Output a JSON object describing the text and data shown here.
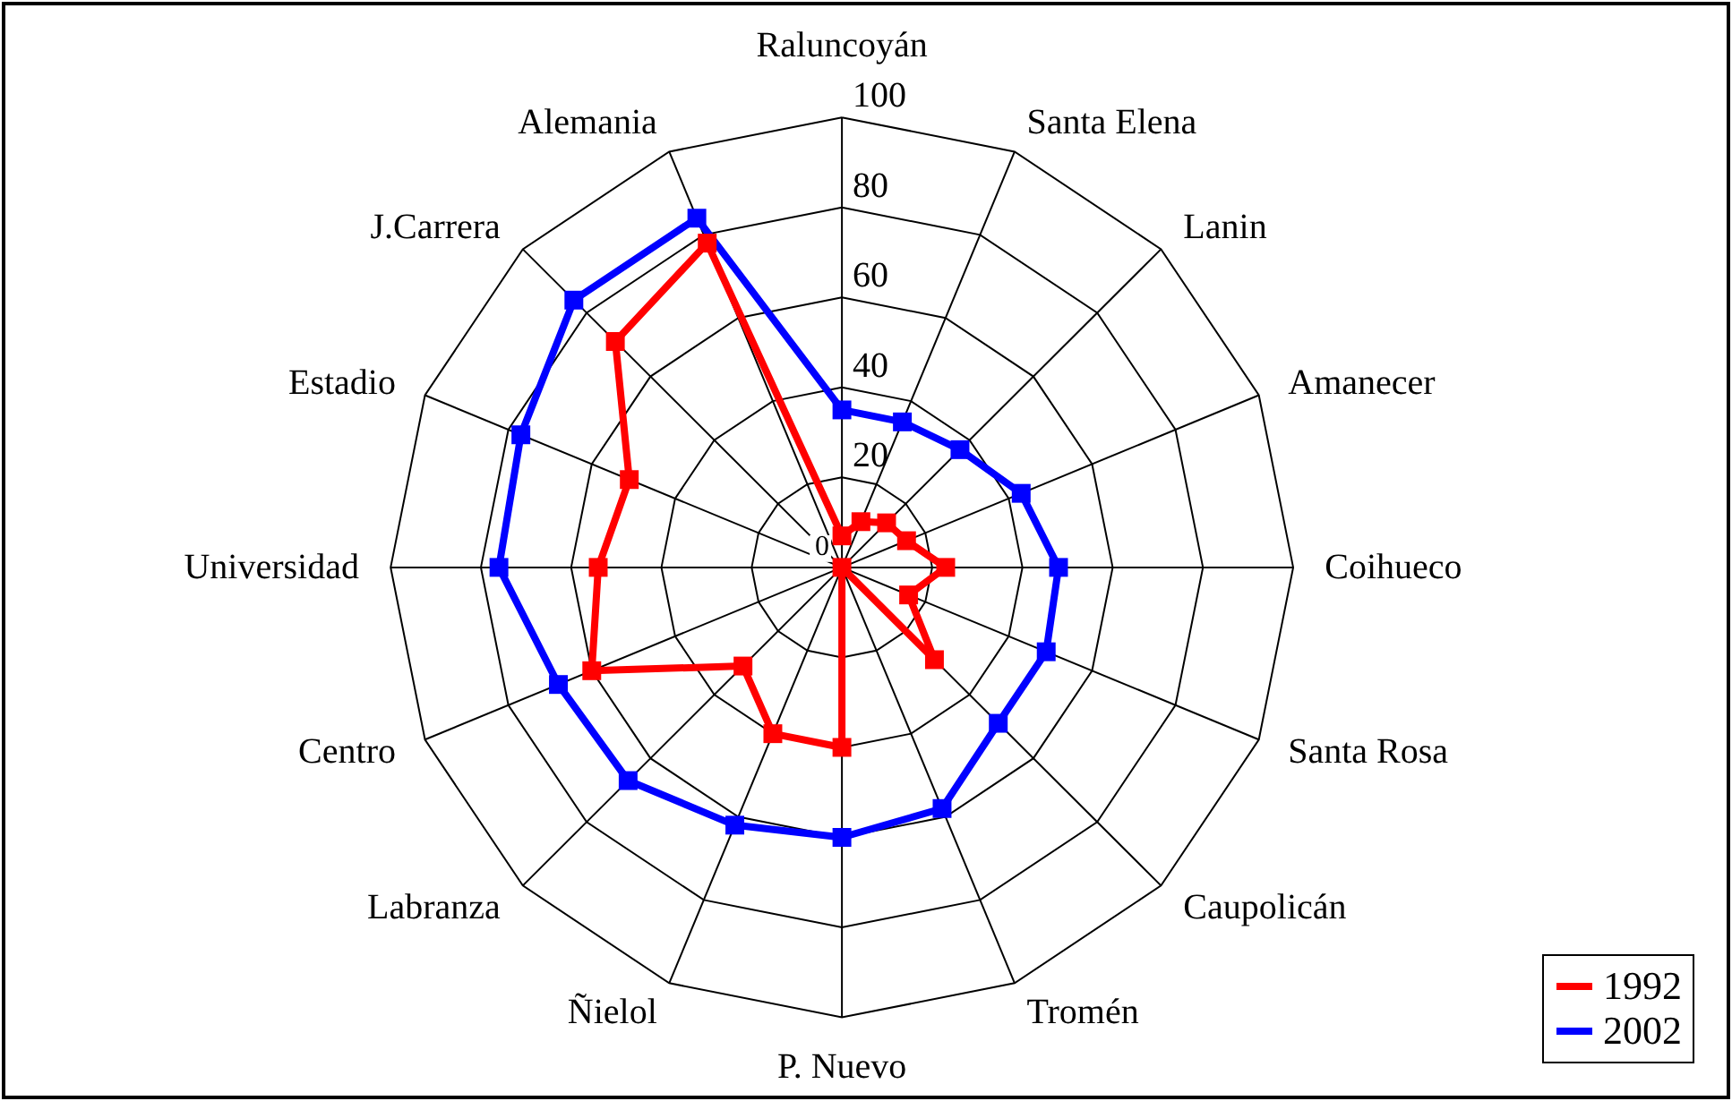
{
  "chart_data": {
    "type": "radar",
    "categories": [
      "Raluncoyán",
      "Santa Elena",
      "Lanin",
      "Amanecer",
      "Coihueco",
      "Santa Rosa",
      "Caupolicán",
      "Tromén",
      "P. Nuevo",
      "Ñielol",
      "Labranza",
      "Centro",
      "Universidad",
      "Estadio",
      "J.Carrera",
      "Alemania"
    ],
    "series": [
      {
        "name": "1992",
        "color": "#ff0000",
        "values": [
          7,
          11,
          14,
          15.5,
          23,
          16,
          29,
          0,
          40,
          40,
          31,
          60,
          54,
          51,
          71,
          78
        ]
      },
      {
        "name": "2002",
        "color": "#0000ff",
        "values": [
          35,
          35,
          37,
          43,
          48,
          49,
          49,
          58,
          60,
          62,
          67,
          68,
          76,
          77,
          84,
          84
        ]
      }
    ],
    "ylim": [
      0,
      100
    ],
    "yticks": [
      0,
      20,
      40,
      60,
      80,
      100
    ],
    "grid": true,
    "legend": "bottom right",
    "marker": "square"
  }
}
